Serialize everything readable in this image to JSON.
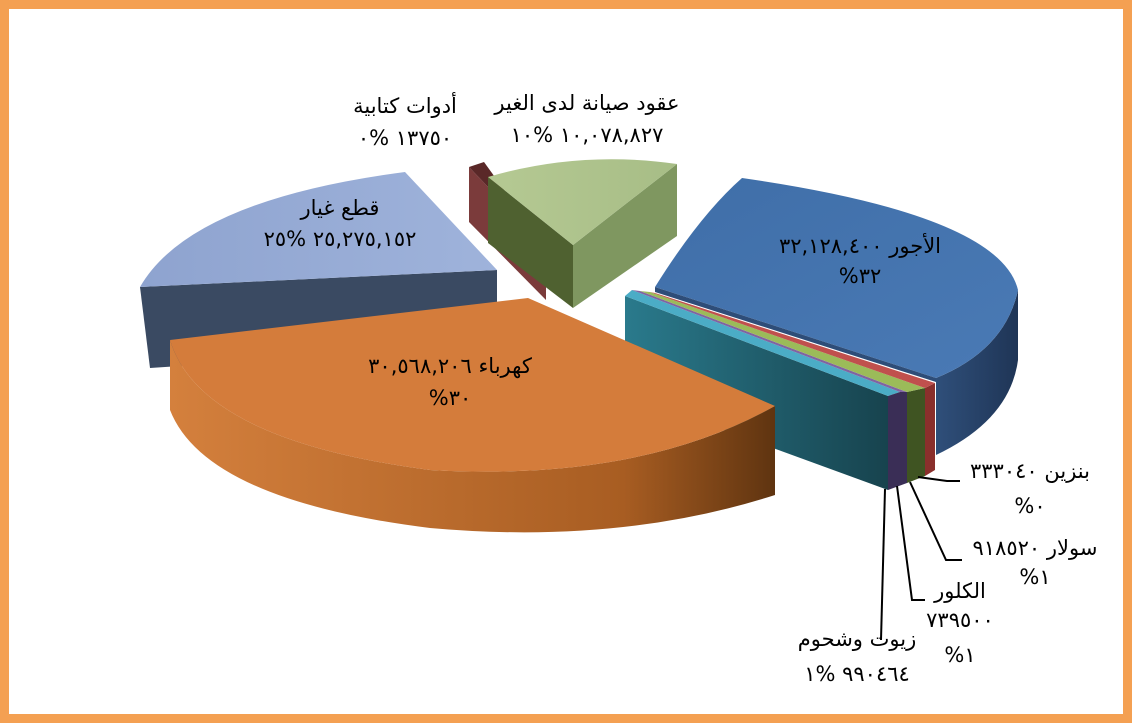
{
  "chart_data": {
    "type": "pie",
    "title": "",
    "style": "3d-exploded",
    "slices": [
      {
        "name": "الأجور",
        "value_text": "٣٢,١٢٨,٤٠٠",
        "percent_text": "%٣٢",
        "value": 32128400,
        "percent": 32,
        "color": "#4472c4"
      },
      {
        "name": "بنزين",
        "value_text": "٣٣٣٠٤٠",
        "percent_text": "%٠",
        "value": 333040,
        "percent": 0,
        "color": "#c0504d"
      },
      {
        "name": "سولار",
        "value_text": "٩١٨٥٢٠",
        "percent_text": "%١",
        "value": 918520,
        "percent": 1,
        "color": "#9bbb59"
      },
      {
        "name": "الكلور",
        "value_text": "٧٣٩٥٠٠",
        "percent_text": "%١",
        "value": 739500,
        "percent": 1,
        "color": "#8064a2"
      },
      {
        "name": "زيوت وشحوم",
        "value_text": "٩٩٠٤٦٤",
        "percent_text": "%١",
        "value": 990464,
        "percent": 1,
        "color": "#4bacc6"
      },
      {
        "name": "كهرباء",
        "value_text": "٣٠,٥٦٨,٢٠٦",
        "percent_text": "%٣٠",
        "value": 30568206,
        "percent": 30,
        "color": "#f79646"
      },
      {
        "name": "قطع غيار",
        "value_text": "٢٥,٢٧٥,١٥٢",
        "percent_text": "%٢٥",
        "value": 25275152,
        "percent": 25,
        "color": "#95a9d4"
      },
      {
        "name": "أدوات كتابية",
        "value_text": "١٣٧٥٠",
        "percent_text": "%٠",
        "value": 13750,
        "percent": 0,
        "color": "#7b3b3b"
      },
      {
        "name": "عقود صيانة لدى الغير",
        "value_text": "١٠,٠٧٨,٨٢٧",
        "percent_text": "%١٠",
        "value": 10078827,
        "percent": 10,
        "color": "#c4d79b"
      }
    ]
  }
}
